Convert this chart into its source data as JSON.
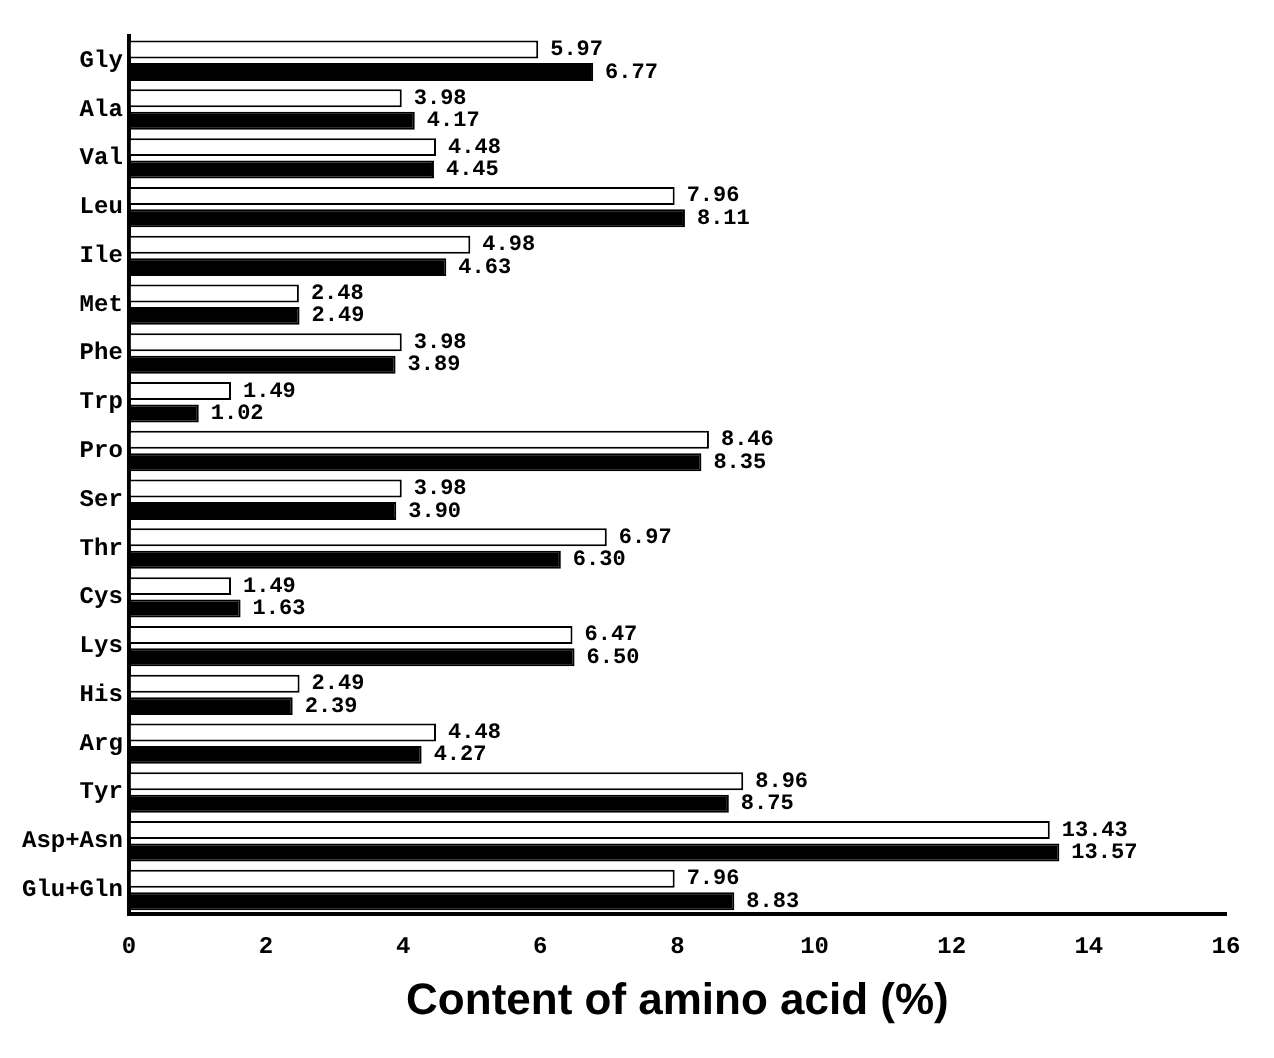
{
  "chart_data": {
    "type": "bar",
    "orientation": "horizontal",
    "xlabel": "Content of amino acid (%)",
    "categories": [
      "Gly",
      "Ala",
      "Val",
      "Leu",
      "Ile",
      "Met",
      "Phe",
      "Trp",
      "Pro",
      "Ser",
      "Thr",
      "Cys",
      "Lys",
      "His",
      "Arg",
      "Tyr",
      "Asp+Asn",
      "Glu+Gln"
    ],
    "series": [
      {
        "color": "#ffffff",
        "values": [
          5.97,
          3.98,
          4.48,
          7.96,
          4.98,
          2.48,
          3.98,
          1.49,
          8.46,
          3.98,
          6.97,
          1.49,
          6.47,
          2.49,
          4.48,
          8.96,
          13.43,
          7.96
        ],
        "value_labels": [
          "5.97",
          "3.98",
          "4.48",
          "7.96",
          "4.98",
          "2.48",
          "3.98",
          "1.49",
          "8.46",
          "3.98",
          "6.97",
          "1.49",
          "6.47",
          "2.49",
          "4.48",
          "8.96",
          "13.43",
          "7.96"
        ]
      },
      {
        "color": "#000000",
        "values": [
          6.77,
          4.17,
          4.45,
          8.11,
          4.63,
          2.49,
          3.89,
          1.02,
          8.35,
          3.9,
          6.3,
          1.63,
          6.5,
          2.39,
          4.27,
          8.75,
          13.57,
          8.83
        ],
        "value_labels": [
          "6.77",
          "4.17",
          "4.45",
          "8.11",
          "4.63",
          "2.49",
          "3.89",
          "1.02",
          "8.35",
          "3.90",
          "6.30",
          "1.63",
          "6.50",
          "2.39",
          "4.27",
          "8.75",
          "13.57",
          "8.83"
        ]
      }
    ],
    "xlim": [
      0,
      16
    ],
    "xticks": [
      0,
      2,
      4,
      6,
      8,
      10,
      12,
      14,
      16
    ],
    "grid": false,
    "legend": false
  }
}
